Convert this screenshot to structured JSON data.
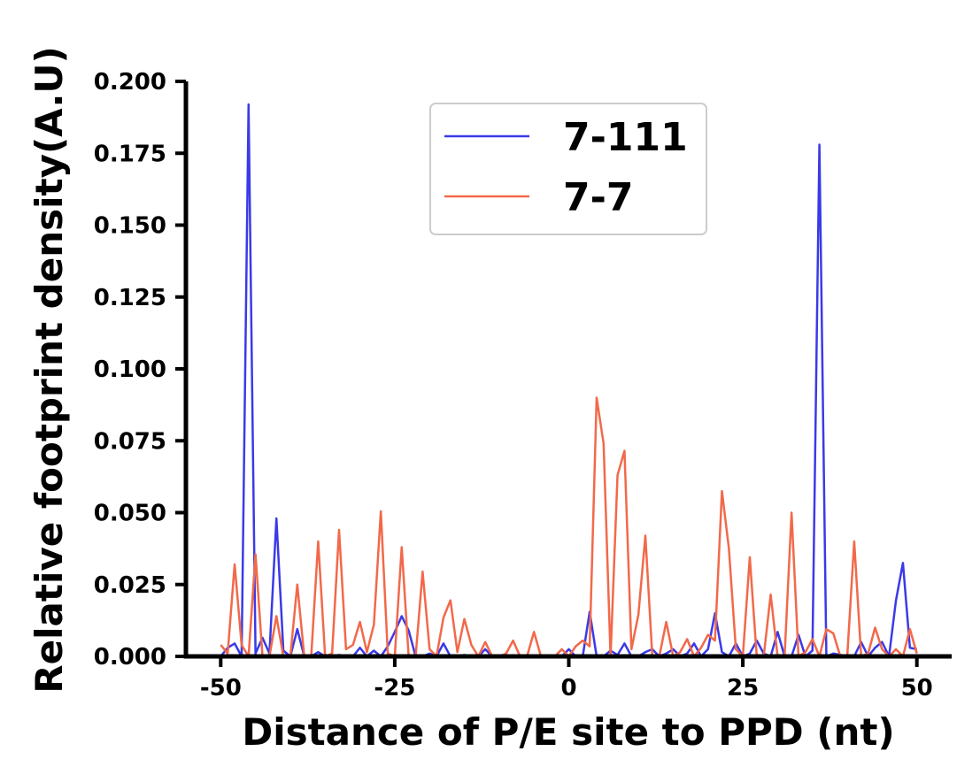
{
  "chart_data": {
    "type": "line",
    "xlabel": "Distance of P/E site to PPD (nt)",
    "ylabel": "Relative footprint density(A.U)",
    "xlim": [
      -55,
      55
    ],
    "ylim": [
      0,
      0.2
    ],
    "xticks": [
      -50,
      -25,
      0,
      25,
      50
    ],
    "xtick_labels": [
      "-50",
      "-25",
      "0",
      "25",
      "50"
    ],
    "yticks": [
      0,
      0.025,
      0.05,
      0.075,
      0.1,
      0.125,
      0.15,
      0.175,
      0.2
    ],
    "ytick_labels": [
      "0.000",
      "0.025",
      "0.050",
      "0.075",
      "0.100",
      "0.125",
      "0.150",
      "0.175",
      "0.200"
    ],
    "grid": false,
    "legend_position": "top-center",
    "x": [
      -50,
      -49,
      -48,
      -47,
      -46,
      -45,
      -44,
      -43,
      -42,
      -41,
      -40,
      -39,
      -38,
      -37,
      -36,
      -35,
      -34,
      -33,
      -32,
      -31,
      -30,
      -29,
      -28,
      -27,
      -26,
      -25,
      -24,
      -23,
      -22,
      -21,
      -20,
      -19,
      -18,
      -17,
      -16,
      -15,
      -14,
      -13,
      -12,
      -11,
      -10,
      -9,
      -8,
      -7,
      -6,
      -5,
      -4,
      -3,
      -2,
      -1,
      0,
      1,
      2,
      3,
      4,
      5,
      6,
      7,
      8,
      9,
      10,
      11,
      12,
      13,
      14,
      15,
      16,
      17,
      18,
      19,
      20,
      21,
      22,
      23,
      24,
      25,
      26,
      27,
      28,
      29,
      30,
      31,
      32,
      33,
      34,
      35,
      36,
      37,
      38,
      39,
      40,
      41,
      42,
      43,
      44,
      45,
      46,
      47,
      48,
      49,
      50
    ],
    "series": [
      {
        "name": "7-111",
        "color": "#3a3ae8",
        "values": [
          0,
          0.003,
          0.0045,
          0,
          0.192,
          0.001,
          0.0065,
          0.001,
          0.048,
          0.002,
          0,
          0.0095,
          0,
          0,
          0.0015,
          0,
          0,
          0.0005,
          0,
          0,
          0.003,
          0,
          0.002,
          0,
          0.0035,
          0.0085,
          0.014,
          0.009,
          0,
          0,
          0.001,
          0,
          0.0045,
          0,
          0,
          0.0005,
          0,
          0,
          0.0025,
          0,
          0,
          0,
          0,
          0,
          0,
          0,
          0,
          0,
          0,
          0,
          0.0025,
          0,
          0,
          0.0155,
          0,
          0,
          0.002,
          0.0005,
          0.0045,
          0,
          0,
          0.0015,
          0.0025,
          0,
          0.001,
          0.0025,
          0,
          0.001,
          0.0045,
          0,
          0.0025,
          0.015,
          0.0015,
          0,
          0.0045,
          0,
          0.001,
          0.0055,
          0.001,
          0,
          0.0085,
          0,
          0,
          0.0075,
          0,
          0.002,
          0.178,
          0,
          0.001,
          0.0005,
          0,
          0,
          0.005,
          0,
          0.003,
          0.005,
          0,
          0.0195,
          0.0325,
          0.003,
          0.0025
        ]
      },
      {
        "name": "7-7",
        "color": "#f2694a",
        "values": [
          0.004,
          0.001,
          0.032,
          0.004,
          0,
          0.0355,
          0,
          0,
          0.014,
          0,
          0,
          0.025,
          0,
          0,
          0.04,
          0,
          0.001,
          0.044,
          0.0025,
          0.004,
          0.012,
          0.0015,
          0.011,
          0.0505,
          0.001,
          0,
          0.038,
          0,
          0,
          0.0295,
          0.0025,
          0,
          0.0135,
          0.0195,
          0.0015,
          0.013,
          0.004,
          0,
          0.005,
          0,
          0,
          0.001,
          0.0055,
          0,
          0,
          0.0085,
          0,
          0,
          0,
          0.0025,
          0,
          0.0035,
          0.0055,
          0.0035,
          0.09,
          0.074,
          0,
          0.063,
          0.0715,
          0.0025,
          0.0145,
          0.042,
          0,
          0,
          0.012,
          0,
          0.0015,
          0.006,
          0,
          0.003,
          0.0075,
          0.0055,
          0.0575,
          0.0375,
          0.0025,
          0,
          0.0345,
          0,
          0,
          0.0215,
          0,
          0,
          0.05,
          0,
          0.0015,
          0.006,
          0,
          0.0095,
          0.008,
          0,
          0,
          0.04,
          0,
          0.001,
          0.01,
          0.0025,
          0,
          0.0025,
          0,
          0.0095,
          0.001
        ]
      }
    ]
  }
}
